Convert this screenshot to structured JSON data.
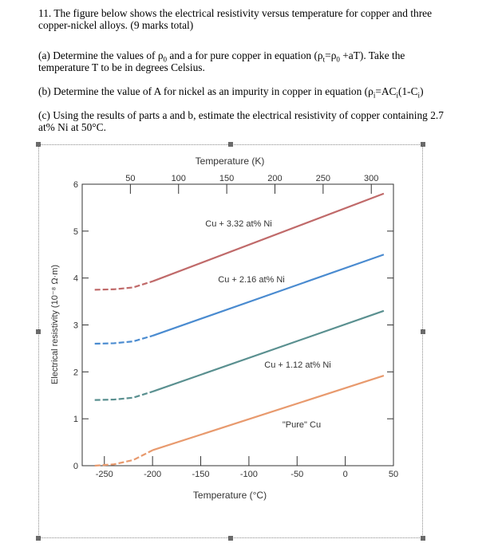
{
  "question": {
    "intro_line1": "11. The figure below shows the electrical resistivity versus temperature for copper and three",
    "intro_line2": "copper-nickel alloys. (9 marks total)",
    "part_a": {
      "prefix": "(a) Determine the values of ",
      "rho": "ρ",
      "zero": "0",
      "mid": " and a for pure copper in equation (",
      "t": "t",
      "eq": "=",
      "rest": " +aT). Take the",
      "line2": "temperature T to be in degrees Celsius."
    },
    "part_b": {
      "prefix": "(b) Determine the value of A for nickel as an impurity in copper in equation (",
      "i": "i",
      "eq": "=AC",
      "mid": "(1-C",
      "end": ")"
    },
    "part_c": {
      "line1": "(c) Using the results of parts a and b, estimate the electrical resistivity of copper containing 2.7",
      "line2": "at% Ni at 50°C."
    }
  },
  "chart_data": {
    "type": "line",
    "top_axis_title": "Temperature (K)",
    "top_ticks": [
      "50",
      "100",
      "150",
      "200",
      "250",
      "300"
    ],
    "xlabel": "Temperature (°C)",
    "ylabel": "Electrical resistivity (10⁻⁸ Ω·m)",
    "x_ticks": [
      "-250",
      "-200",
      "-150",
      "-100",
      "-50",
      "0",
      "50"
    ],
    "y_ticks": [
      "0",
      "1",
      "2",
      "3",
      "4",
      "5",
      "6"
    ],
    "xlim": [
      -273,
      50
    ],
    "ylim": [
      0,
      6
    ],
    "series": [
      {
        "label": "Cu + 3.32 at% Ni",
        "color": "#c06a6a",
        "dashed_part": [
          [
            -260,
            3.75
          ],
          [
            -240,
            3.76
          ],
          [
            -220,
            3.8
          ],
          [
            -200,
            3.93
          ]
        ],
        "solid_part": [
          [
            -200,
            3.93
          ],
          [
            40,
            5.8
          ]
        ]
      },
      {
        "label": "Cu + 2.16 at% Ni",
        "color": "#4a8bd0",
        "dashed_part": [
          [
            -260,
            2.6
          ],
          [
            -240,
            2.61
          ],
          [
            -220,
            2.65
          ],
          [
            -200,
            2.77
          ]
        ],
        "solid_part": [
          [
            -200,
            2.77
          ],
          [
            40,
            4.5
          ]
        ]
      },
      {
        "label": "Cu + 1.12 at% Ni",
        "color": "#5a9090",
        "dashed_part": [
          [
            -260,
            1.4
          ],
          [
            -240,
            1.41
          ],
          [
            -220,
            1.45
          ],
          [
            -200,
            1.58
          ]
        ],
        "solid_part": [
          [
            -200,
            1.58
          ],
          [
            40,
            3.3
          ]
        ]
      },
      {
        "label": "\"Pure\" Cu",
        "color": "#e89a6e",
        "dashed_part": [
          [
            -260,
            0.0
          ],
          [
            -240,
            0.03
          ],
          [
            -220,
            0.12
          ],
          [
            -200,
            0.33
          ]
        ],
        "solid_part": [
          [
            -200,
            0.33
          ],
          [
            40,
            1.92
          ]
        ]
      }
    ]
  }
}
